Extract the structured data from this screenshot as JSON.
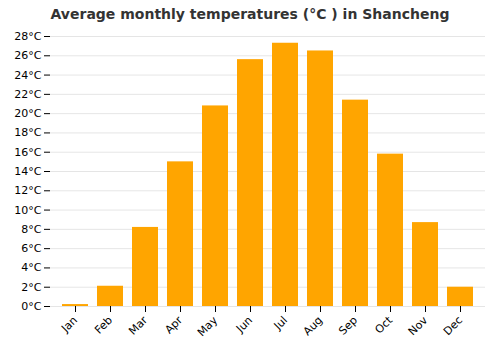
{
  "chart_data": {
    "type": "bar",
    "title": "Average monthly temperatures (°C ) in Shancheng",
    "categories": [
      "Jan",
      "Feb",
      "Mar",
      "Apr",
      "May",
      "Jun",
      "Jul",
      "Aug",
      "Sep",
      "Oct",
      "Nov",
      "Dec"
    ],
    "values": [
      0.2,
      2.1,
      8.2,
      15.0,
      20.8,
      25.6,
      27.3,
      26.5,
      21.4,
      15.8,
      8.7,
      2.0
    ],
    "color": "#FFA500",
    "ylim": [
      0,
      28
    ],
    "yticks": [
      {
        "value": 0,
        "label": "0°C"
      },
      {
        "value": 2,
        "label": "2°C"
      },
      {
        "value": 4,
        "label": "4°C"
      },
      {
        "value": 6,
        "label": "6°C"
      },
      {
        "value": 8,
        "label": "8°C"
      },
      {
        "value": 10,
        "label": "10°C"
      },
      {
        "value": 12,
        "label": "12°C"
      },
      {
        "value": 14,
        "label": "14°C"
      },
      {
        "value": 16,
        "label": "16°C"
      },
      {
        "value": 18,
        "label": "18°C"
      },
      {
        "value": 20,
        "label": "20°C"
      },
      {
        "value": 22,
        "label": "22°C"
      },
      {
        "value": 24,
        "label": "24°C"
      },
      {
        "value": 26,
        "label": "26°C"
      },
      {
        "value": 28,
        "label": "28°C"
      }
    ],
    "grid": true
  }
}
